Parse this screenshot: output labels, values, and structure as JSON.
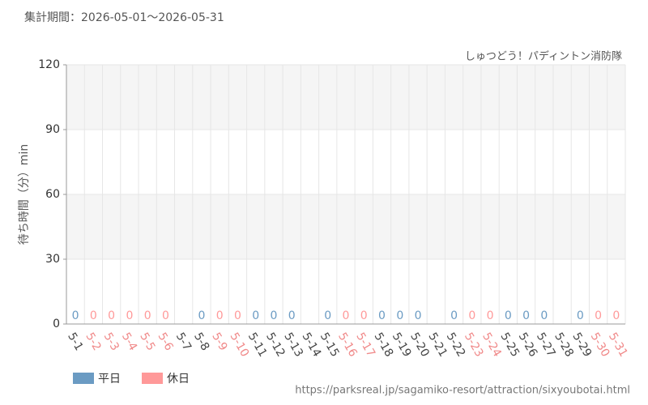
{
  "chart_data": {
    "type": "bar",
    "title": "集計期間：2026-05-01～2026-05-31",
    "subtitle": "しゅつどう！パディントン消防隊",
    "y_label": "待ち時間（分）min",
    "source": "https://parksreal.jp/sagamiko-resort/attraction/sixyoubotai.html",
    "categories": [
      "5-1",
      "5-2",
      "5-3",
      "5-4",
      "5-5",
      "5-6",
      "5-7",
      "5-8",
      "5-9",
      "5-10",
      "5-11",
      "5-12",
      "5-13",
      "5-14",
      "5-15",
      "5-16",
      "5-17",
      "5-18",
      "5-19",
      "5-20",
      "5-21",
      "5-22",
      "5-23",
      "5-24",
      "5-25",
      "5-26",
      "5-27",
      "5-28",
      "5-29",
      "5-30",
      "5-31"
    ],
    "label_colors": [
      "#444444",
      "#f08888",
      "#f08888",
      "#f08888",
      "#f08888",
      "#f08888",
      "#444444",
      "#444444",
      "#f08888",
      "#f08888",
      "#444444",
      "#444444",
      "#444444",
      "#444444",
      "#444444",
      "#f08888",
      "#f08888",
      "#444444",
      "#444444",
      "#444444",
      "#444444",
      "#444444",
      "#f08888",
      "#f08888",
      "#444444",
      "#444444",
      "#444444",
      "#444444",
      "#444444",
      "#f08888",
      "#f08888"
    ],
    "series": [
      {
        "name": "平日",
        "color": "#6b9bc3",
        "values": [
          0,
          null,
          null,
          null,
          null,
          null,
          null,
          0,
          null,
          null,
          0,
          0,
          0,
          null,
          0,
          null,
          null,
          0,
          0,
          0,
          null,
          0,
          null,
          null,
          0,
          0,
          0,
          null,
          0,
          null,
          null
        ]
      },
      {
        "name": "休日",
        "color": "#ff9999",
        "values": [
          null,
          0,
          0,
          0,
          0,
          0,
          null,
          null,
          0,
          0,
          null,
          null,
          null,
          null,
          null,
          0,
          0,
          null,
          null,
          null,
          null,
          null,
          0,
          0,
          null,
          null,
          null,
          null,
          null,
          0,
          0
        ]
      }
    ],
    "ylim": [
      0,
      120
    ],
    "yticks": [
      0,
      30,
      60,
      90,
      120
    ],
    "grid": true
  }
}
